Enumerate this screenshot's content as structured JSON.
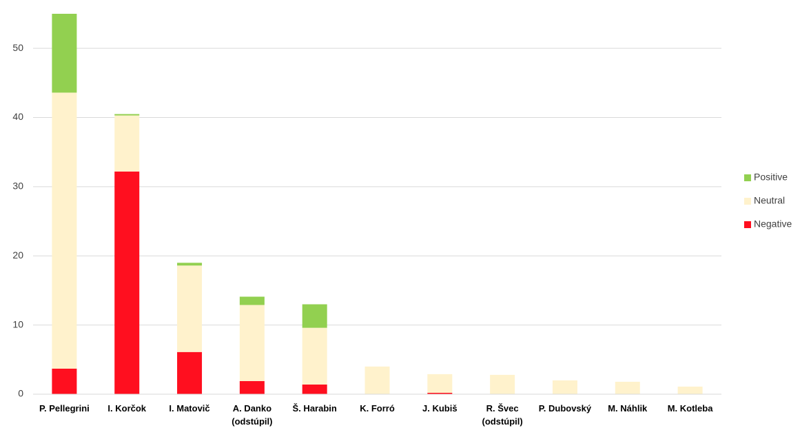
{
  "chart_data": {
    "type": "stacked_bar",
    "categories": [
      "P. Pellegrini",
      "I. Korčok",
      "I. Matovič",
      "A. Danko (odstúpil)",
      "Š. Harabin",
      "K. Forró",
      "J. Kubiš",
      "R. Švec (odstúpil)",
      "P. Dubovský",
      "M. Náhlik",
      "M. Kotleba"
    ],
    "series": [
      {
        "name": "Negative",
        "color": "#ff0f1f",
        "values": [
          3.7,
          32.2,
          6.1,
          1.9,
          1.4,
          0,
          0.2,
          0,
          0,
          0,
          0
        ]
      },
      {
        "name": "Neutral",
        "color": "#fff2cc",
        "values": [
          39.9,
          8.1,
          12.5,
          11.0,
          8.2,
          4.0,
          2.7,
          2.8,
          2.0,
          1.8,
          1.1
        ]
      },
      {
        "name": "Positive",
        "color": "#92d050",
        "values": [
          11.4,
          0.2,
          0.4,
          1.2,
          3.4,
          0,
          0,
          0,
          0,
          0,
          0
        ]
      }
    ],
    "ylim": [
      0,
      55
    ],
    "yticks": [
      0,
      10,
      20,
      30,
      40,
      50
    ],
    "grid": true,
    "legend": "right"
  }
}
